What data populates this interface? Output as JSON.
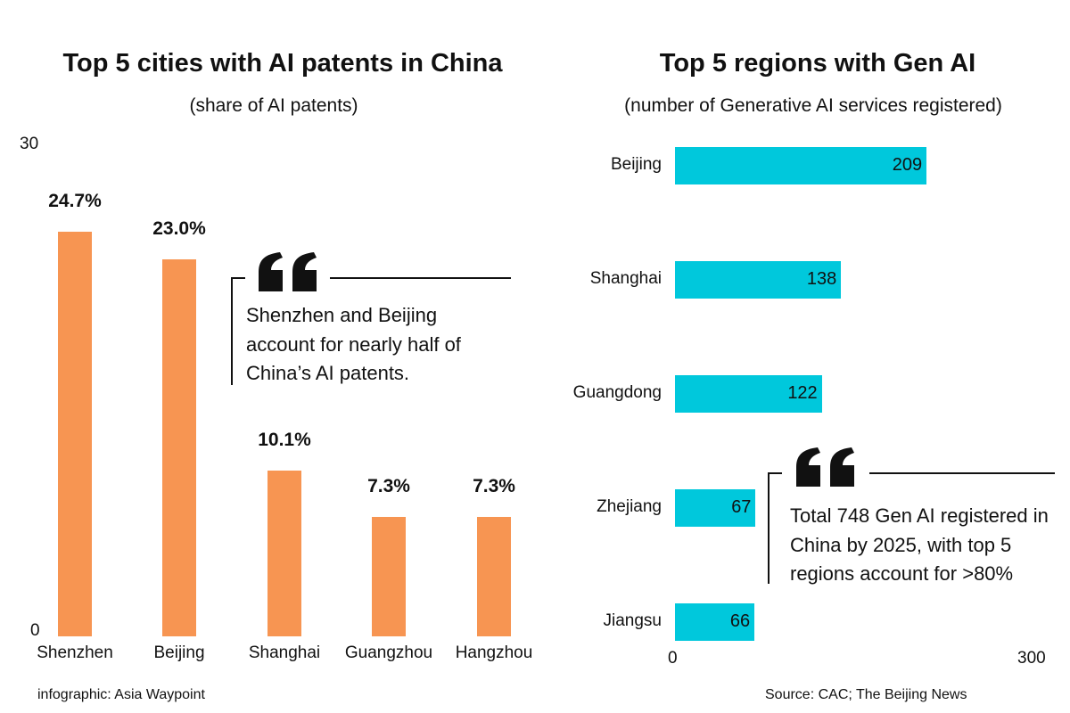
{
  "chart_data": [
    {
      "type": "bar",
      "title": "Top 5 cities with AI patents in China",
      "subtitle": "(share of AI patents)",
      "categories": [
        "Shenzhen",
        "Beijing",
        "Shanghai",
        "Guangzhou",
        "Hangzhou"
      ],
      "values": [
        24.7,
        23.0,
        10.1,
        7.3,
        7.3
      ],
      "value_labels": [
        "24.7%",
        "23.0%",
        "10.1%",
        "7.3%",
        "7.3%"
      ],
      "ylim": [
        0,
        30
      ],
      "y_ticks": [
        "0",
        "30"
      ],
      "color": "#F79552",
      "grid": false,
      "annotation": "Shenzhen and Beijing account for nearly half of China’s AI patents."
    },
    {
      "type": "bar",
      "orientation": "horizontal",
      "title": "Top 5 regions with Gen AI",
      "subtitle": "(number of Generative AI services registered)",
      "categories": [
        "Beijing",
        "Shanghai",
        "Guangdong",
        "Zhejiang",
        "Jiangsu"
      ],
      "values": [
        209,
        138,
        122,
        67,
        66
      ],
      "xlim": [
        0,
        300
      ],
      "x_ticks": [
        "0",
        "300"
      ],
      "color": "#00C8DC",
      "grid": false,
      "annotation": "Total 748 Gen AI registered in China by 2025, with top 5 regions account for >80%"
    }
  ],
  "footer": {
    "credit": "infographic: Asia Waypoint",
    "source": "Source: CAC; The Beijing News"
  },
  "quote_mark": "“"
}
